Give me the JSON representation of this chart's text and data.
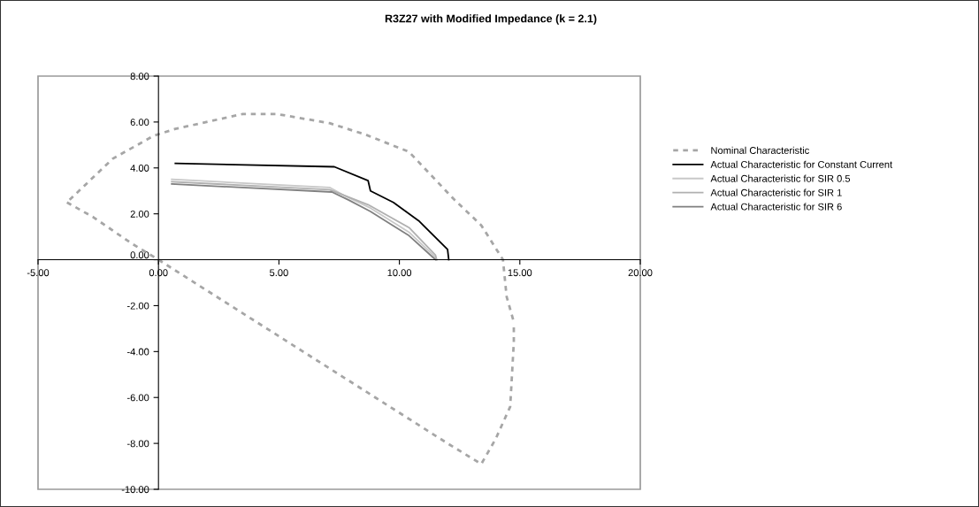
{
  "chart_data": {
    "type": "line",
    "title": "R3Z27 with Modified Impedance (k = 2.1)",
    "xlim": [
      -5,
      20
    ],
    "ylim": [
      -10,
      8
    ],
    "xticks": [
      {
        "value": -5,
        "label": "-5.00"
      },
      {
        "value": 0,
        "label": "0.00"
      },
      {
        "value": 5,
        "label": "5.00"
      },
      {
        "value": 10,
        "label": "10.00"
      },
      {
        "value": 15,
        "label": "15.00"
      },
      {
        "value": 20,
        "label": "20.00"
      }
    ],
    "yticks": [
      {
        "value": -10,
        "label": "-10.00"
      },
      {
        "value": -8,
        "label": "-8.00"
      },
      {
        "value": -6,
        "label": "-6.00"
      },
      {
        "value": -4,
        "label": "-4.00"
      },
      {
        "value": -2,
        "label": "-2.00"
      },
      {
        "value": 0,
        "label": "0.00"
      },
      {
        "value": 2,
        "label": "2.00"
      },
      {
        "value": 4,
        "label": "4.00"
      },
      {
        "value": 6,
        "label": "6.00"
      },
      {
        "value": 8,
        "label": "8.00"
      }
    ],
    "grid": false,
    "legend": "right",
    "marker": "none",
    "series": [
      {
        "name": "Nominal Characteristic",
        "color": "#a6a6a6",
        "line_style": "dashed",
        "x": [
          -3.8,
          -2.7,
          -1.1,
          0,
          3,
          6,
          9,
          12,
          13.4,
          14.0,
          14.6,
          14.75,
          14.75,
          14.74,
          14.72,
          14.45,
          14.3,
          13.4,
          12.25,
          10.4,
          8.6,
          7.1,
          4.9,
          3.5,
          0.7,
          -0.2,
          -1.9,
          -3.8
        ],
        "values": [
          2.5,
          1.85,
          0.7,
          0,
          -2,
          -4,
          -6,
          -8,
          -8.9,
          -7.8,
          -6.4,
          -3.6,
          -2.9,
          null,
          -2.6,
          -1.6,
          0,
          1.5,
          2.65,
          4.7,
          5.45,
          5.95,
          6.35,
          6.35,
          5.7,
          5.4,
          4.4,
          2.5
        ]
      },
      {
        "name": "Actual Characteristic for Constant Current",
        "color": "#000000",
        "line_style": "solid",
        "x": [
          0.7,
          7.3,
          8.7,
          8.8,
          9.75,
          10.8,
          12.0,
          12.05
        ],
        "values": [
          4.2,
          4.05,
          3.45,
          3.0,
          2.5,
          1.7,
          0.45,
          0
        ]
      },
      {
        "name": "Actual Characteristic for SIR 0.5",
        "color": "#c8c8c8",
        "line_style": "solid",
        "x": [
          0.55,
          7.1,
          7.8,
          8.8,
          10.4,
          11.5,
          11.55
        ],
        "values": [
          3.5,
          3.15,
          2.75,
          2.25,
          1.2,
          0.1,
          0
        ]
      },
      {
        "name": "Actual Characteristic for SIR 1",
        "color": "#b0b0b0",
        "line_style": "solid",
        "x": [
          0.55,
          7.1,
          7.6,
          8.7,
          10.4,
          11.5,
          11.55
        ],
        "values": [
          3.4,
          3.05,
          2.85,
          2.4,
          1.4,
          0.2,
          0
        ]
      },
      {
        "name": "Actual Characteristic for SIR 6",
        "color": "#808080",
        "line_style": "solid",
        "x": [
          0.55,
          7.2,
          7.9,
          8.8,
          10.4,
          11.45,
          11.5
        ],
        "values": [
          3.3,
          2.95,
          2.6,
          2.1,
          1.05,
          0.05,
          0
        ]
      }
    ]
  }
}
